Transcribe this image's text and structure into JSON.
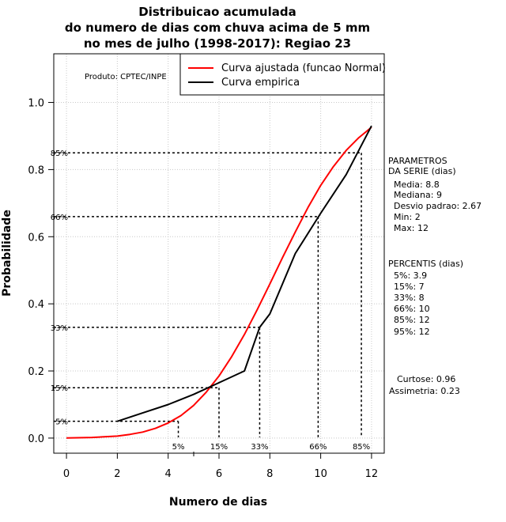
{
  "chart_data": {
    "type": "line",
    "title": [
      "Distribuicao acumulada",
      "do numero de dias com chuva acima de 5 mm",
      "no mes de julho (1998-2017): Regiao 23"
    ],
    "xlabel": "Numero de dias",
    "ylabel": "Probabilidade",
    "xlim": [
      -0.5,
      12.5
    ],
    "ylim": [
      -0.045,
      1.145
    ],
    "x_ticks": [
      0,
      2,
      4,
      6,
      8,
      10,
      12
    ],
    "y_ticks": [
      0.0,
      0.2,
      0.4,
      0.6,
      0.8,
      1.0
    ],
    "x_tick_labels": [
      "0",
      "2",
      "4",
      "6",
      "8",
      "10",
      "12"
    ],
    "y_tick_labels": [
      "0.0",
      "0.2",
      "0.4",
      "0.6",
      "0.8",
      "1.0"
    ],
    "grid": true,
    "legend_position": "top-right",
    "series": [
      {
        "name": "Curva ajustada (funcao Normal)",
        "color": "#ff0000",
        "x": [
          0,
          1,
          2,
          2.5,
          3,
          3.5,
          4,
          4.5,
          5,
          5.5,
          6,
          6.5,
          7,
          7.5,
          8,
          8.5,
          9,
          9.5,
          10,
          10.5,
          11,
          11.5,
          12
        ],
        "values": [
          0.0005,
          0.002,
          0.006,
          0.011,
          0.018,
          0.029,
          0.045,
          0.067,
          0.097,
          0.137,
          0.185,
          0.243,
          0.309,
          0.382,
          0.459,
          0.538,
          0.614,
          0.687,
          0.753,
          0.809,
          0.857,
          0.895,
          0.926
        ]
      },
      {
        "name": "Curva empirica",
        "color": "#000000",
        "x": [
          2,
          3,
          4,
          5,
          6,
          7,
          7.6,
          8,
          9,
          10,
          11,
          12
        ],
        "values": [
          0.05,
          0.075,
          0.1,
          0.13,
          0.165,
          0.2,
          0.33,
          0.37,
          0.55,
          0.67,
          0.785,
          0.93
        ]
      }
    ],
    "percentile_markers": [
      {
        "label": "5%",
        "x": 4.4,
        "y": 0.05
      },
      {
        "label": "15%",
        "x": 6.0,
        "y": 0.15
      },
      {
        "label": "33%",
        "x": 7.6,
        "y": 0.33
      },
      {
        "label": "66%",
        "x": 9.9,
        "y": 0.66
      },
      {
        "label": "85%",
        "x": 11.6,
        "y": 0.85
      }
    ]
  },
  "annotations": {
    "produto": "Produto: CPTEC/INPE",
    "parametros": [
      "PARAMETROS",
      "DA SERIE (dias)",
      "Media: 8.8",
      "Mediana: 9",
      "Desvio padrao: 2.67",
      "Min: 2",
      "Max: 12"
    ],
    "percentis": [
      "PERCENTIS (dias)",
      "5%: 3.9",
      "15%: 7",
      "33%: 8",
      "66%: 10",
      "85%: 12",
      "95%: 12"
    ],
    "forma": [
      "Curtose: 0.96",
      "Assimetria: 0.23"
    ]
  }
}
